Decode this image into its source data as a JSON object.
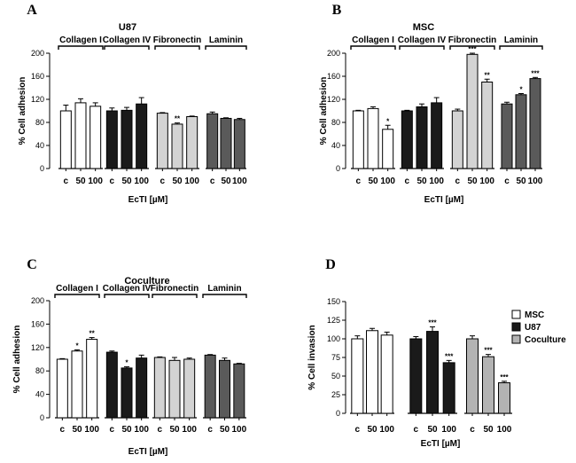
{
  "chart_data": [
    {
      "id": "A",
      "letter": "A",
      "type": "bar",
      "title": "U87",
      "xlabel": "EcTI [µM]",
      "ylabel": "% Cell adhesion",
      "ylim": [
        0,
        200
      ],
      "yticks": [
        0,
        40,
        80,
        120,
        160,
        200
      ],
      "groups": [
        {
          "name": "Collagen I",
          "color": "#ffffff",
          "categories": [
            "c",
            "50",
            "100"
          ],
          "values": [
            100,
            114,
            108
          ],
          "errors": [
            10,
            7,
            6
          ],
          "stars": [
            "",
            "",
            ""
          ]
        },
        {
          "name": "Collagen IV",
          "color": "#1a1a1a",
          "categories": [
            "c",
            "50",
            "100"
          ],
          "values": [
            100,
            101,
            112
          ],
          "errors": [
            5,
            5,
            11
          ],
          "stars": [
            "",
            "",
            ""
          ]
        },
        {
          "name": "Fibronectin",
          "color": "#d3d3d3",
          "categories": [
            "c",
            "50",
            "100"
          ],
          "values": [
            96,
            77,
            90
          ],
          "errors": [
            1,
            2,
            1
          ],
          "stars": [
            "",
            "**",
            ""
          ]
        },
        {
          "name": "Laminin",
          "color": "#5a5a5a",
          "categories": [
            "c",
            "50",
            "100"
          ],
          "values": [
            95,
            87,
            85
          ],
          "errors": [
            3,
            1,
            2
          ],
          "stars": [
            "",
            "",
            ""
          ]
        }
      ]
    },
    {
      "id": "B",
      "letter": "B",
      "type": "bar",
      "title": "MSC",
      "xlabel": "EcTI [µM]",
      "ylabel": "% Cell adhesion",
      "ylim": [
        0,
        200
      ],
      "yticks": [
        0,
        40,
        80,
        120,
        160,
        200
      ],
      "groups": [
        {
          "name": "Collagen I",
          "color": "#ffffff",
          "categories": [
            "c",
            "50",
            "100"
          ],
          "values": [
            100,
            104,
            68
          ],
          "errors": [
            1,
            3,
            7
          ],
          "stars": [
            "",
            "",
            "*"
          ]
        },
        {
          "name": "Collagen IV",
          "color": "#1a1a1a",
          "categories": [
            "c",
            "50",
            "100"
          ],
          "values": [
            100,
            107,
            114
          ],
          "errors": [
            1,
            5,
            9
          ],
          "stars": [
            "",
            "",
            ""
          ]
        },
        {
          "name": "Fibronectin",
          "color": "#d3d3d3",
          "categories": [
            "c",
            "50",
            "100"
          ],
          "values": [
            100,
            198,
            150
          ],
          "errors": [
            3,
            2,
            5
          ],
          "stars": [
            "",
            "***",
            "**"
          ]
        },
        {
          "name": "Laminin",
          "color": "#5a5a5a",
          "categories": [
            "c",
            "50",
            "100"
          ],
          "values": [
            112,
            128,
            156
          ],
          "errors": [
            3,
            2,
            2
          ],
          "stars": [
            "",
            "*",
            "***"
          ]
        }
      ]
    },
    {
      "id": "C",
      "letter": "C",
      "type": "bar",
      "title": "Coculture",
      "xlabel": "EcTI [µM]",
      "ylabel": "% Cell adhesion",
      "ylim": [
        0,
        200
      ],
      "yticks": [
        0,
        40,
        80,
        120,
        160,
        200
      ],
      "groups": [
        {
          "name": "Collagen I",
          "color": "#ffffff",
          "categories": [
            "c",
            "50",
            "100"
          ],
          "values": [
            100,
            114,
            134
          ],
          "errors": [
            1,
            2,
            3
          ],
          "stars": [
            "",
            "*",
            "**"
          ]
        },
        {
          "name": "Collagen IV",
          "color": "#1a1a1a",
          "categories": [
            "c",
            "50",
            "100"
          ],
          "values": [
            112,
            85,
            102
          ],
          "errors": [
            2,
            2,
            5
          ],
          "stars": [
            "",
            "*",
            ""
          ]
        },
        {
          "name": "Fibronectin",
          "color": "#d3d3d3",
          "categories": [
            "c",
            "50",
            "100"
          ],
          "values": [
            103,
            98,
            100
          ],
          "errors": [
            1,
            5,
            2
          ],
          "stars": [
            "",
            "",
            ""
          ]
        },
        {
          "name": "Laminin",
          "color": "#5a5a5a",
          "categories": [
            "c",
            "50",
            "100"
          ],
          "values": [
            107,
            98,
            92
          ],
          "errors": [
            1,
            4,
            1
          ],
          "stars": [
            "",
            "",
            ""
          ]
        }
      ]
    },
    {
      "id": "D",
      "letter": "D",
      "type": "bar",
      "title": "",
      "xlabel": "EcTI [µM]",
      "ylabel": "% Cell invasion",
      "ylim": [
        0,
        150
      ],
      "yticks": [
        0,
        25,
        50,
        75,
        100,
        125,
        150
      ],
      "legend": [
        {
          "label": "MSC",
          "color": "#ffffff"
        },
        {
          "label": "U87",
          "color": "#1a1a1a"
        },
        {
          "label": "Coculture",
          "color": "#b3b3b3"
        }
      ],
      "groups": [
        {
          "name": "MSC",
          "color": "#ffffff",
          "categories": [
            "c",
            "50",
            "100"
          ],
          "values": [
            100,
            111,
            105
          ],
          "errors": [
            4,
            3,
            4
          ],
          "stars": [
            "",
            "",
            ""
          ]
        },
        {
          "name": "U87",
          "color": "#1a1a1a",
          "categories": [
            "c",
            "50",
            "100"
          ],
          "values": [
            100,
            110,
            68
          ],
          "errors": [
            3,
            6,
            3
          ],
          "stars": [
            "",
            "***",
            "***"
          ]
        },
        {
          "name": "Coculture",
          "color": "#b3b3b3",
          "categories": [
            "c",
            "50",
            "100"
          ],
          "values": [
            100,
            76,
            41
          ],
          "errors": [
            4,
            3,
            2
          ],
          "stars": [
            "",
            "***",
            "***"
          ]
        }
      ]
    }
  ]
}
